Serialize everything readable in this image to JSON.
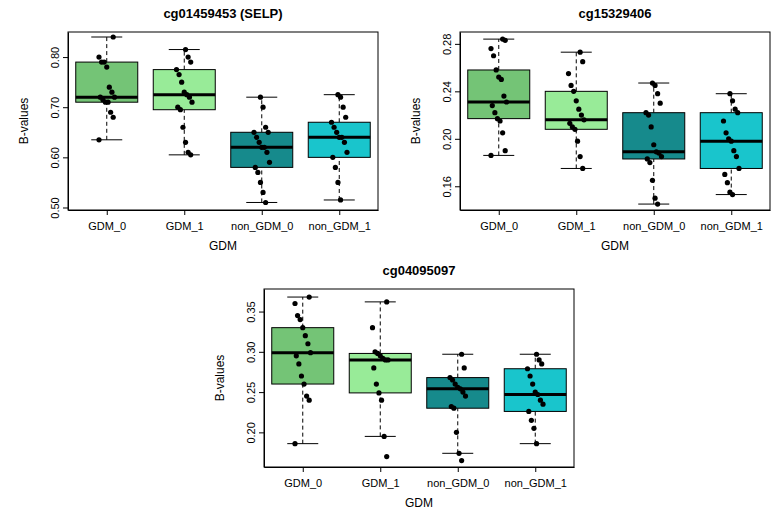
{
  "chart_data": [
    {
      "type": "box",
      "title": "cg01459453 (SELP)",
      "x_label": "GDM",
      "y_label": "B-values",
      "categories": [
        "GDM_0",
        "GDM_1",
        "non_GDM_0",
        "non_GDM_1"
      ],
      "colors": [
        "#74c476",
        "#98eb98",
        "#168a8c",
        "#19c5cc"
      ],
      "ylim": [
        0.495,
        0.85
      ],
      "yticks": [
        {
          "value": 0.5,
          "label": "0.50"
        },
        {
          "value": 0.6,
          "label": "0.60"
        },
        {
          "value": 0.7,
          "label": "0.70"
        },
        {
          "value": 0.8,
          "label": "0.80"
        }
      ],
      "boxes": [
        {
          "min": 0.635,
          "q1": 0.71,
          "median": 0.72,
          "q3": 0.79,
          "max": 0.84
        },
        {
          "min": 0.605,
          "q1": 0.695,
          "median": 0.725,
          "q3": 0.775,
          "max": 0.815
        },
        {
          "min": 0.51,
          "q1": 0.58,
          "median": 0.62,
          "q3": 0.65,
          "max": 0.72
        },
        {
          "min": 0.515,
          "q1": 0.6,
          "median": 0.64,
          "q3": 0.67,
          "max": 0.725
        }
      ],
      "points": [
        [
          0.635,
          0.68,
          0.69,
          0.71,
          0.71,
          0.715,
          0.72,
          0.72,
          0.73,
          0.74,
          0.78,
          0.79,
          0.79,
          0.8,
          0.84
        ],
        [
          0.605,
          0.61,
          0.63,
          0.66,
          0.695,
          0.7,
          0.71,
          0.72,
          0.725,
          0.73,
          0.75,
          0.765,
          0.775,
          0.79,
          0.8,
          0.815
        ],
        [
          0.51,
          0.53,
          0.55,
          0.57,
          0.58,
          0.59,
          0.61,
          0.62,
          0.62,
          0.63,
          0.64,
          0.65,
          0.65,
          0.66,
          0.7,
          0.72
        ],
        [
          0.515,
          0.55,
          0.58,
          0.6,
          0.61,
          0.63,
          0.64,
          0.64,
          0.65,
          0.66,
          0.67,
          0.68,
          0.7,
          0.72,
          0.725
        ]
      ]
    },
    {
      "type": "box",
      "title": "cg15329406",
      "x_label": "GDM",
      "y_label": "B-values",
      "categories": [
        "GDM_0",
        "GDM_1",
        "non_GDM_0",
        "non_GDM_1"
      ],
      "colors": [
        "#74c476",
        "#98eb98",
        "#168a8c",
        "#19c5cc"
      ],
      "ylim": [
        0.14,
        0.29
      ],
      "yticks": [
        {
          "value": 0.16,
          "label": "0.16"
        },
        {
          "value": 0.2,
          "label": "0.20"
        },
        {
          "value": 0.24,
          "label": "0.24"
        },
        {
          "value": 0.28,
          "label": "0.28"
        }
      ],
      "boxes": [
        {
          "min": 0.186,
          "q1": 0.217,
          "median": 0.231,
          "q3": 0.258,
          "max": 0.284
        },
        {
          "min": 0.175,
          "q1": 0.208,
          "median": 0.216,
          "q3": 0.24,
          "max": 0.273
        },
        {
          "min": 0.145,
          "q1": 0.183,
          "median": 0.189,
          "q3": 0.222,
          "max": 0.247
        },
        {
          "min": 0.153,
          "q1": 0.175,
          "median": 0.198,
          "q3": 0.222,
          "max": 0.238
        }
      ],
      "points": [
        [
          0.186,
          0.19,
          0.205,
          0.215,
          0.217,
          0.222,
          0.228,
          0.231,
          0.236,
          0.25,
          0.252,
          0.258,
          0.27,
          0.276,
          0.283,
          0.284
        ],
        [
          0.175,
          0.185,
          0.198,
          0.208,
          0.21,
          0.213,
          0.216,
          0.22,
          0.225,
          0.232,
          0.24,
          0.245,
          0.255,
          0.265,
          0.273
        ],
        [
          0.145,
          0.15,
          0.165,
          0.18,
          0.183,
          0.185,
          0.188,
          0.189,
          0.195,
          0.21,
          0.22,
          0.222,
          0.23,
          0.238,
          0.245,
          0.247
        ],
        [
          0.153,
          0.155,
          0.163,
          0.17,
          0.175,
          0.185,
          0.19,
          0.198,
          0.2,
          0.205,
          0.215,
          0.222,
          0.225,
          0.232,
          0.238
        ]
      ]
    },
    {
      "type": "box",
      "title": "cg04095097",
      "x_label": "GDM",
      "y_label": "B-values",
      "categories": [
        "GDM_0",
        "GDM_1",
        "non_GDM_0",
        "non_GDM_1"
      ],
      "colors": [
        "#74c476",
        "#98eb98",
        "#168a8c",
        "#19c5cc"
      ],
      "ylim": [
        0.157,
        0.378
      ],
      "yticks": [
        {
          "value": 0.2,
          "label": "0.20"
        },
        {
          "value": 0.25,
          "label": "0.25"
        },
        {
          "value": 0.3,
          "label": "0.30"
        },
        {
          "value": 0.35,
          "label": "0.35"
        }
      ],
      "boxes": [
        {
          "min": 0.186,
          "q1": 0.26,
          "median": 0.299,
          "q3": 0.33,
          "max": 0.368
        },
        {
          "min": 0.195,
          "q1": 0.249,
          "median": 0.29,
          "q3": 0.298,
          "max": 0.362
        },
        {
          "min": 0.174,
          "q1": 0.23,
          "median": 0.254,
          "q3": 0.268,
          "max": 0.297
        },
        {
          "min": 0.186,
          "q1": 0.226,
          "median": 0.247,
          "q3": 0.279,
          "max": 0.297
        }
      ],
      "points": [
        [
          0.186,
          0.24,
          0.245,
          0.26,
          0.27,
          0.285,
          0.295,
          0.299,
          0.31,
          0.32,
          0.33,
          0.34,
          0.345,
          0.36,
          0.368
        ],
        [
          0.17,
          0.195,
          0.24,
          0.249,
          0.26,
          0.28,
          0.29,
          0.29,
          0.292,
          0.295,
          0.298,
          0.3,
          0.33,
          0.362
        ],
        [
          0.165,
          0.174,
          0.2,
          0.23,
          0.232,
          0.245,
          0.25,
          0.254,
          0.256,
          0.26,
          0.265,
          0.268,
          0.28,
          0.297
        ],
        [
          0.186,
          0.205,
          0.215,
          0.226,
          0.235,
          0.24,
          0.247,
          0.25,
          0.26,
          0.27,
          0.279,
          0.285,
          0.29,
          0.297
        ]
      ]
    }
  ]
}
